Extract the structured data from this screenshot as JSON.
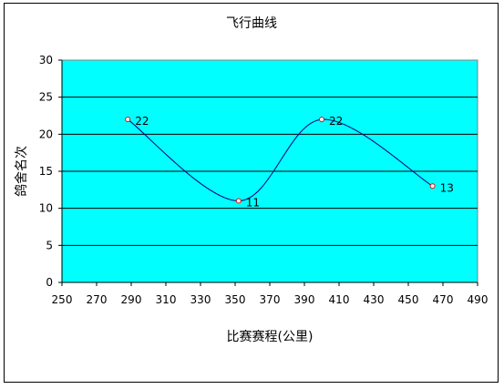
{
  "chart_data": {
    "type": "scatter",
    "title": "飞行曲线",
    "xlabel": "比赛赛程(公里)",
    "ylabel": "鸽舍名次",
    "xlim": [
      250,
      490
    ],
    "ylim": [
      0,
      30
    ],
    "x_ticks": [
      "250",
      "270",
      "290",
      "310",
      "330",
      "350",
      "370",
      "390",
      "410",
      "430",
      "450",
      "470",
      "490"
    ],
    "y_ticks": [
      "0",
      "5",
      "10",
      "15",
      "20",
      "25",
      "30"
    ],
    "grid": "horizontal",
    "smoothed": true,
    "plot_background": "#00FFFF",
    "line_color": "#000080",
    "marker_fill": "#ffffff",
    "marker_stroke": "#ff0000",
    "series": [
      {
        "x": [
          288,
          352,
          400,
          464
        ],
        "y": [
          22,
          11,
          22,
          13
        ],
        "labels": [
          "22",
          "11",
          "22",
          "13"
        ]
      }
    ]
  }
}
